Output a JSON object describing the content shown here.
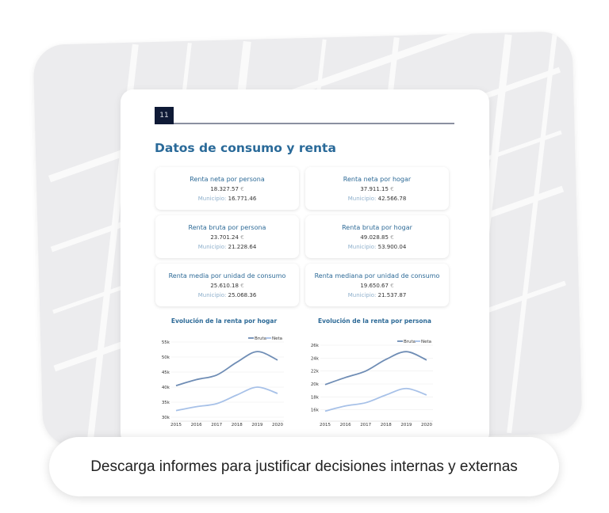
{
  "page": {
    "number": "11",
    "title": "Datos de consumo y renta"
  },
  "cards": [
    {
      "title": "Renta neta por persona",
      "value": "18.327.57",
      "currency": "€",
      "municipio_label": "Municipio:",
      "municipio_value": "16.771.46"
    },
    {
      "title": "Renta neta por hogar",
      "value": "37.911.15",
      "currency": "€",
      "municipio_label": "Municipio:",
      "municipio_value": "42.566.78"
    },
    {
      "title": "Renta bruta por persona",
      "value": "23.701.24",
      "currency": "€",
      "municipio_label": "Municipio:",
      "municipio_value": "21.228.64"
    },
    {
      "title": "Renta bruta por hogar",
      "value": "49.028.85",
      "currency": "€",
      "municipio_label": "Municipio:",
      "municipio_value": "53.900.04"
    },
    {
      "title": "Renta media por unidad de consumo",
      "value": "25.610.18",
      "currency": "€",
      "municipio_label": "Municipio:",
      "municipio_value": "25.068.36"
    },
    {
      "title": "Renta mediana por unidad de consumo",
      "value": "19.650.67",
      "currency": "€",
      "municipio_label": "Municipio:",
      "municipio_value": "21.537.87"
    }
  ],
  "chart_data": [
    {
      "type": "line",
      "title": "Evolución de la renta por hogar",
      "x": [
        "2015",
        "2016",
        "2017",
        "2018",
        "2019",
        "2020"
      ],
      "yticks": [
        "30k",
        "35k",
        "40k",
        "45k",
        "50k",
        "55k"
      ],
      "ylim": [
        30000,
        55000
      ],
      "legend": "top-right",
      "grid": true,
      "series": [
        {
          "name": "Bruta",
          "color": "#6f8db5",
          "values": [
            40500,
            42500,
            44000,
            48300,
            51800,
            49000
          ]
        },
        {
          "name": "Neta",
          "color": "#a7c1e8",
          "values": [
            32200,
            33500,
            34500,
            37400,
            40000,
            37900
          ]
        }
      ]
    },
    {
      "type": "line",
      "title": "Evolución de la renta por persona",
      "x": [
        "2015",
        "2016",
        "2017",
        "2018",
        "2019",
        "2020"
      ],
      "yticks": [
        "16k",
        "18k",
        "20k",
        "22k",
        "24k",
        "26k"
      ],
      "ylim": [
        14000,
        26000
      ],
      "legend": "top-right",
      "grid": true,
      "series": [
        {
          "name": "Bruta",
          "color": "#6f8db5",
          "values": [
            19900,
            21000,
            22000,
            23800,
            25000,
            23700
          ]
        },
        {
          "name": "Neta",
          "color": "#a7c1e8",
          "values": [
            15800,
            16600,
            17100,
            18300,
            19300,
            18300
          ]
        }
      ]
    }
  ],
  "banner": {
    "text": "Descarga informes para justificar decisiones internas y externas"
  }
}
